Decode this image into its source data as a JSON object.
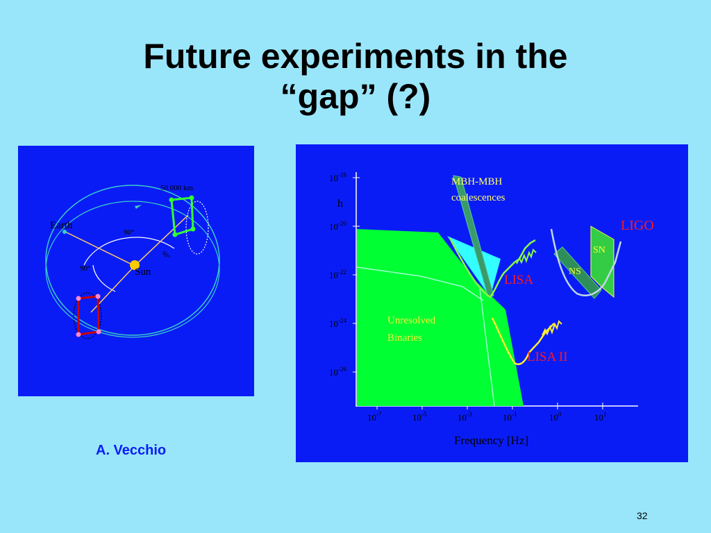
{
  "slide": {
    "title_line1": "Future experiments in the",
    "title_line2": "“gap” (?)",
    "credit": "A. Vecchio",
    "page_number": "32"
  },
  "orbit_diagram": {
    "earth_label": "Earth",
    "sun_label": "Sun",
    "distance_label": "50 000 km",
    "angle_label_top": "90°",
    "angle_label_left": "90°",
    "angle_label_small": "60°"
  },
  "sensitivity_plot": {
    "y_axis_label": "h",
    "x_axis_label": "Frequency [Hz]",
    "y_ticks": [
      {
        "base": "10",
        "exp": "-18"
      },
      {
        "base": "10",
        "exp": "-20"
      },
      {
        "base": "10",
        "exp": "-22"
      },
      {
        "base": "10",
        "exp": "-24"
      },
      {
        "base": "10",
        "exp": "-26"
      }
    ],
    "x_ticks": [
      {
        "base": "10",
        "exp": "-7"
      },
      {
        "base": "10",
        "exp": "-5"
      },
      {
        "base": "10",
        "exp": "-3"
      },
      {
        "base": "10",
        "exp": "-1"
      },
      {
        "base": "10",
        "exp": "0"
      },
      {
        "base": "10",
        "exp": "1"
      }
    ],
    "labels": {
      "mbh_line1": "MBH-MBH",
      "mbh_line2": "coalescences",
      "unresolved_line1": "Unresolved",
      "unresolved_line2": "Binaries",
      "lisa": "LISA",
      "lisa2": "LISA II",
      "ligo": "LIGO",
      "sn": "SN",
      "ns": "NS"
    },
    "colors": {
      "background": "#0a1cf6",
      "binaries_fill": "#00ff33",
      "lisa_curve": "#88ff44",
      "label_red": "#ff1a1a",
      "label_yellow": "#ffff33"
    }
  }
}
